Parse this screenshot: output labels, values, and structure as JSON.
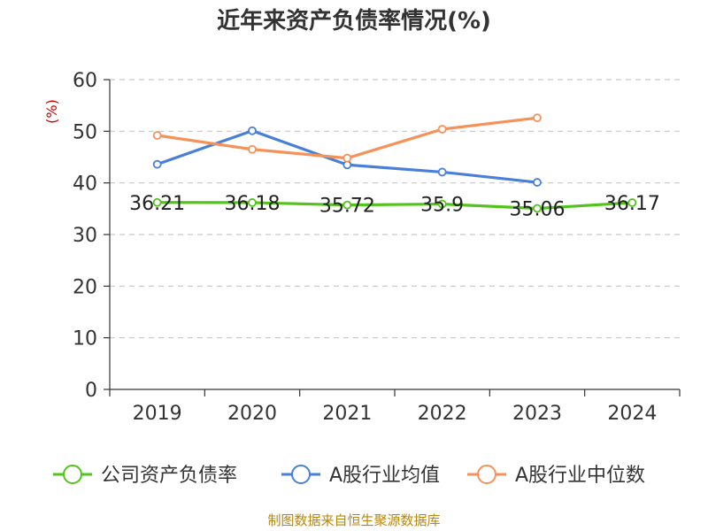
{
  "chart_data": {
    "type": "line",
    "title": "近年来资产负债率情况(%)",
    "ylabel": "(%)",
    "xlabel": "",
    "categories": [
      "2019",
      "2020",
      "2021",
      "2022",
      "2023",
      "2024"
    ],
    "y_ticks": [
      "0",
      "10",
      "20",
      "30",
      "40",
      "50",
      "60"
    ],
    "ylim": [
      0,
      60
    ],
    "grid": true,
    "legend_position": "bottom",
    "series": [
      {
        "name": "公司资产负债率",
        "color": "#52c41a",
        "values": [
          36.21,
          36.18,
          35.72,
          35.9,
          35.06,
          36.17
        ],
        "labels": [
          "36.21",
          "36.18",
          "35.72",
          "35.9",
          "35.06",
          "36.17"
        ]
      },
      {
        "name": "A股行业均值",
        "color": "#4a7fd9",
        "values": [
          43.6,
          50.1,
          43.5,
          42.1,
          40.1,
          null
        ]
      },
      {
        "name": "A股行业中位数",
        "color": "#f5925a",
        "values": [
          49.2,
          46.5,
          44.8,
          50.4,
          52.6,
          null
        ]
      }
    ],
    "source": "制图数据来自恒生聚源数据库"
  }
}
